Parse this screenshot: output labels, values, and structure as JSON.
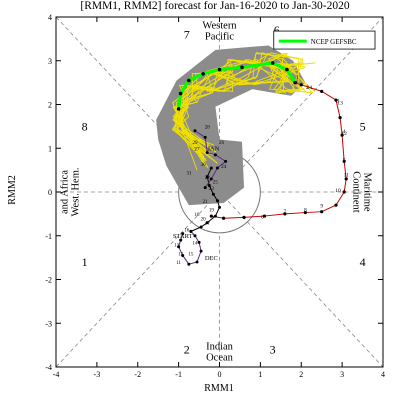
{
  "chart_data": {
    "type": "line",
    "title": "[RMM1, RMM2] forecast for Jan-16-2020 to Jan-30-2020",
    "xlabel": "RMM1",
    "ylabel": "RMM2",
    "xlim": [
      -4,
      4
    ],
    "ylim": [
      -4,
      4
    ],
    "xticks": [
      "-4",
      "-3",
      "-2",
      "-1",
      "0",
      "1",
      "2",
      "3",
      "4"
    ],
    "yticks": [
      "-4",
      "-3",
      "-2",
      "-1",
      "0",
      "1",
      "2",
      "3",
      "4"
    ],
    "grid": "dashed diagonal and zero lines",
    "unit_circle_radius": 1,
    "legend": {
      "label": "NCEP GEFSBC",
      "color": "#00ff00",
      "placement": "top-right"
    },
    "phases": [
      {
        "number": "1",
        "x": -3.3,
        "y": -1.6
      },
      {
        "number": "2",
        "x": -0.8,
        "y": -3.6
      },
      {
        "number": "3",
        "x": 1.3,
        "y": -3.6
      },
      {
        "number": "4",
        "x": 3.5,
        "y": -1.6
      },
      {
        "number": "5",
        "x": 3.5,
        "y": 1.5
      },
      {
        "number": "6",
        "x": 1.4,
        "y": 3.7
      },
      {
        "number": "7",
        "x": -0.8,
        "y": 3.6
      },
      {
        "number": "8",
        "x": -3.3,
        "y": 1.5
      }
    ],
    "regions": [
      {
        "lines": [
          "Western",
          "Pacific"
        ],
        "x": 0,
        "y": 3.6
      },
      {
        "lines": [
          "Indian",
          "Ocean"
        ],
        "x": 0,
        "y": -3.6
      },
      {
        "lines": [
          "Maritime",
          "Continent"
        ],
        "x": 3.55,
        "y": 0
      },
      {
        "lines": [
          "West. Hem.",
          "and Africa"
        ],
        "x": -3.45,
        "y": 0
      }
    ],
    "observed_dec": {
      "color": "#5a2a82",
      "x": [
        -0.9,
        -0.95,
        -1.0,
        -0.9,
        -0.75,
        -0.55,
        -0.45,
        -0.5,
        -0.6,
        -0.7
      ],
      "y": [
        -0.95,
        -1.1,
        -1.25,
        -1.45,
        -1.65,
        -1.6,
        -1.35,
        -1.15,
        -1.0,
        -0.9
      ]
    },
    "observed_jan": {
      "color": "#000000",
      "x": [
        -0.7,
        -0.45,
        -0.3,
        -0.1,
        0.0,
        -0.05,
        -0.15,
        -0.25,
        -0.3,
        -0.2
      ],
      "y": [
        -0.9,
        -0.8,
        -0.7,
        -0.55,
        -0.35,
        -0.2,
        -0.05,
        0.15,
        0.35,
        0.55
      ]
    },
    "observed_labels": {
      "start": "START",
      "dec": "DEC",
      "jan": "JAN",
      "numbers": [
        "31",
        "30",
        "29",
        "28",
        "27",
        "26",
        "25",
        "24",
        "23",
        "22",
        "21",
        "20",
        "19",
        "18",
        "17",
        "16",
        "15",
        "14",
        "13",
        "12",
        "11"
      ]
    },
    "analysis_path": {
      "color": "#cc0000",
      "x": [
        -0.2,
        0.1,
        0.6,
        1.1,
        1.6,
        2.1,
        2.5,
        2.85,
        3.05,
        3.1,
        3.05,
        3.0,
        2.95,
        2.85,
        2.5,
        2.0,
        1.85
      ],
      "y": [
        -0.55,
        -0.6,
        -0.58,
        -0.55,
        -0.5,
        -0.47,
        -0.45,
        -0.3,
        0.0,
        0.3,
        0.7,
        1.3,
        1.7,
        2.1,
        2.3,
        2.45,
        2.5
      ],
      "labels": [
        {
          "text": "1",
          "x": 1.9,
          "y": 2.6
        },
        {
          "text": "2",
          "x": 2.15,
          "y": 2.35
        },
        {
          "text": "3",
          "x": 2.9,
          "y": 2.05
        },
        {
          "text": "4",
          "x": 3.05,
          "y": 1.35
        },
        {
          "text": "5",
          "x": 3.05,
          "y": 0.7
        },
        {
          "text": "6",
          "x": 1.05,
          "y": -0.6
        },
        {
          "text": "7",
          "x": 1.6,
          "y": -0.48
        },
        {
          "text": "8",
          "x": 2.1,
          "y": -0.45
        },
        {
          "text": "9",
          "x": 2.5,
          "y": -0.35
        },
        {
          "text": "10",
          "x": 2.9,
          "y": 0.0
        },
        {
          "text": "11",
          "x": 3.1,
          "y": 0.35
        },
        {
          "text": "12",
          "x": 3.05,
          "y": 1.3
        },
        {
          "text": "13",
          "x": 2.95,
          "y": 2.0
        },
        {
          "text": "14",
          "x": 2.2,
          "y": 2.35
        }
      ]
    },
    "ensemble_mean": {
      "color": "#00ff00",
      "x": [
        -1.0,
        -0.95,
        -0.75,
        -0.4,
        0.0,
        0.55,
        1.3,
        1.65,
        1.85
      ],
      "y": [
        1.9,
        2.25,
        2.55,
        2.7,
        2.8,
        2.85,
        2.95,
        2.8,
        2.5
      ]
    },
    "ensemble_members": {
      "color": "#f0e000",
      "count": 21
    }
  }
}
